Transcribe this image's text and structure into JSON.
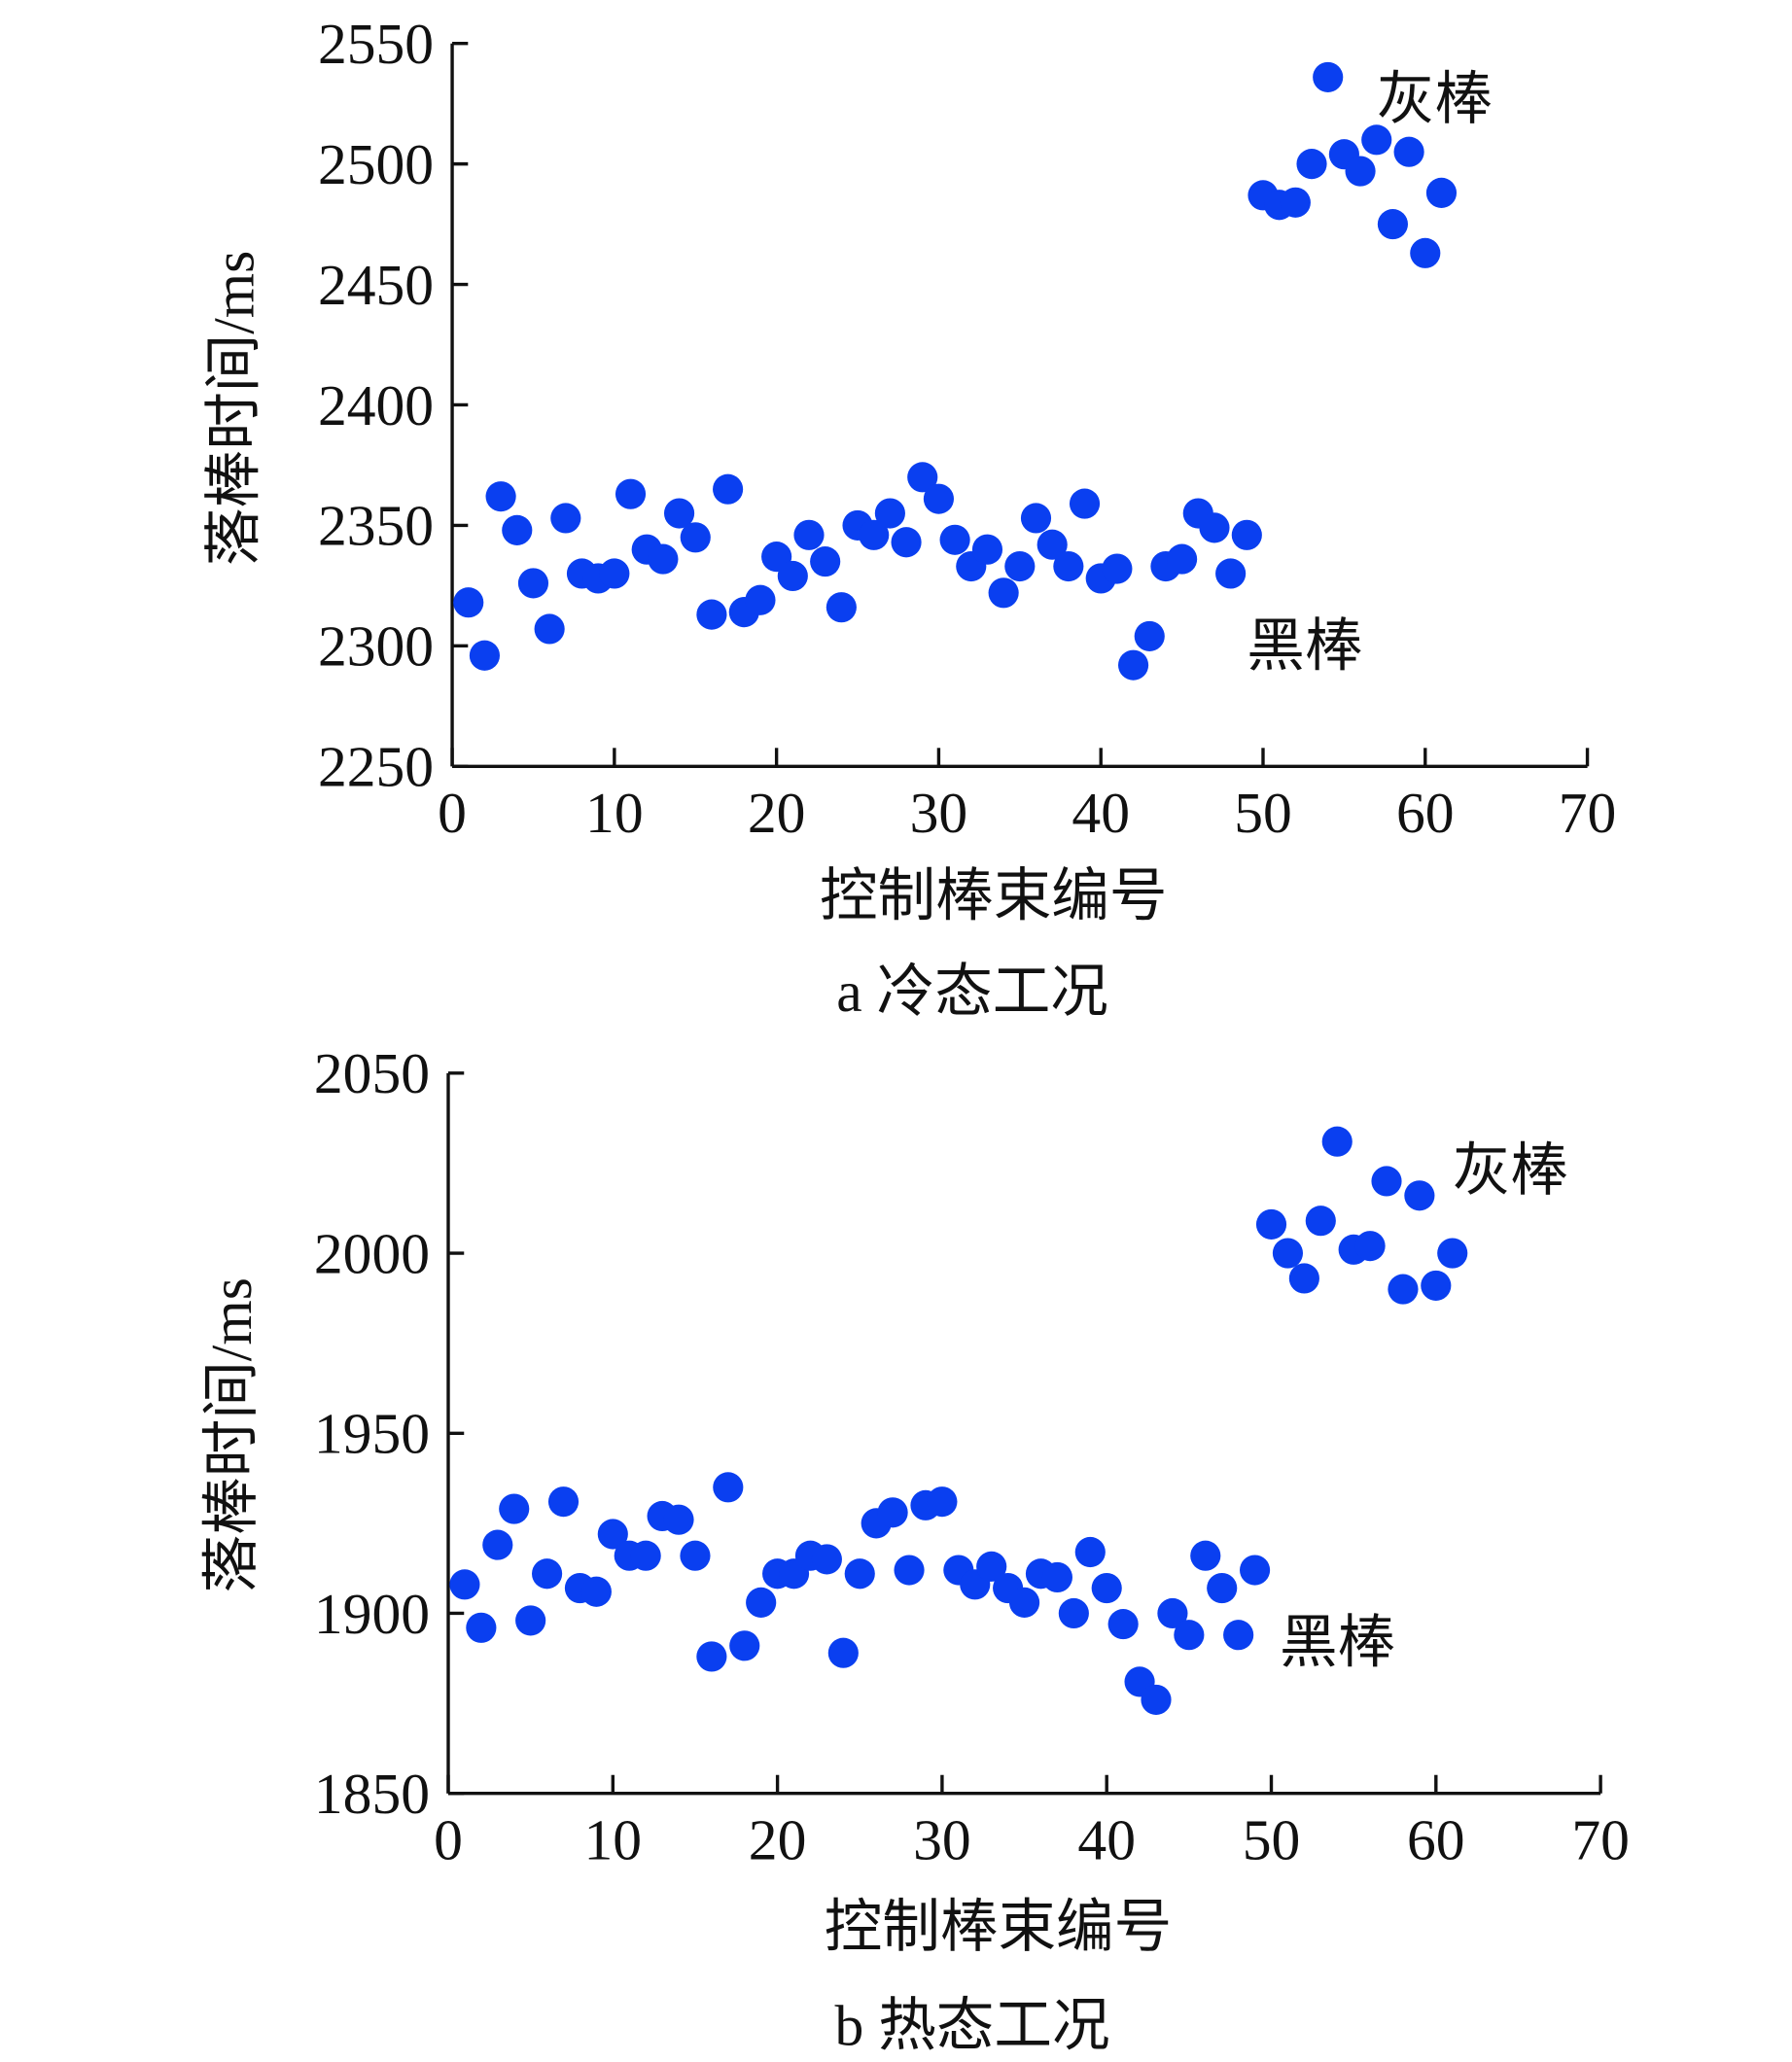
{
  "chart_data": [
    {
      "type": "scatter",
      "caption": "a  冷态工况",
      "xlabel": "控制棒束编号",
      "ylabel": "落棒时间/ms",
      "xlim": [
        0,
        70
      ],
      "ylim": [
        2250,
        2550
      ],
      "xticks": [
        "0",
        "10",
        "20",
        "30",
        "40",
        "50",
        "60",
        "70"
      ],
      "yticks": [
        "2250",
        "2300",
        "2350",
        "2400",
        "2450",
        "2500",
        "2550"
      ],
      "grid": false,
      "marker_color": "#0a3ff0",
      "annotations": [
        {
          "text": "灰棒",
          "x": 57,
          "y": 2527
        },
        {
          "text": "黑棒",
          "x": 49,
          "y": 2300
        }
      ],
      "x": [
        1,
        2,
        3,
        4,
        5,
        6,
        7,
        8,
        9,
        10,
        11,
        12,
        13,
        14,
        15,
        16,
        17,
        18,
        19,
        20,
        21,
        22,
        23,
        24,
        25,
        26,
        27,
        28,
        29,
        30,
        31,
        32,
        33,
        34,
        35,
        36,
        37,
        38,
        39,
        40,
        41,
        42,
        43,
        44,
        45,
        46,
        47,
        48,
        49,
        50,
        51,
        52,
        53,
        54,
        55,
        56,
        57,
        58,
        59,
        60,
        61
      ],
      "y": [
        2318,
        2296,
        2362,
        2348,
        2326,
        2307,
        2353,
        2330,
        2328,
        2330,
        2363,
        2340,
        2336,
        2355,
        2345,
        2313,
        2365,
        2314,
        2319,
        2337,
        2329,
        2346,
        2335,
        2316,
        2350,
        2346,
        2355,
        2343,
        2370,
        2361,
        2344,
        2333,
        2340,
        2322,
        2333,
        2353,
        2342,
        2333,
        2359,
        2328,
        2332,
        2292,
        2304,
        2333,
        2336,
        2355,
        2349,
        2330,
        2346,
        2487,
        2483,
        2484,
        2500,
        2536,
        2504,
        2497,
        2510,
        2475,
        2505,
        2463,
        2488
      ]
    },
    {
      "type": "scatter",
      "caption": "b  热态工况",
      "xlabel": "控制棒束编号",
      "ylabel": "落棒时间/ms",
      "xlim": [
        0,
        70
      ],
      "ylim": [
        1850,
        2050
      ],
      "xticks": [
        "0",
        "10",
        "20",
        "30",
        "40",
        "50",
        "60",
        "70"
      ],
      "yticks": [
        "1850",
        "1900",
        "1950",
        "2000",
        "2050"
      ],
      "grid": false,
      "marker_color": "#0a3ff0",
      "annotations": [
        {
          "text": "灰棒",
          "x": 61,
          "y": 2023
        },
        {
          "text": "黑棒",
          "x": 50.5,
          "y": 1892
        }
      ],
      "x": [
        1,
        2,
        3,
        4,
        5,
        6,
        7,
        8,
        9,
        10,
        11,
        12,
        13,
        14,
        15,
        16,
        17,
        18,
        19,
        20,
        21,
        22,
        23,
        24,
        25,
        26,
        27,
        28,
        29,
        30,
        31,
        32,
        33,
        34,
        35,
        36,
        37,
        38,
        39,
        40,
        41,
        42,
        43,
        44,
        45,
        46,
        47,
        48,
        49,
        50,
        51,
        52,
        53,
        54,
        55,
        56,
        57,
        58,
        59,
        60,
        61
      ],
      "y": [
        1908,
        1896,
        1919,
        1929,
        1898,
        1911,
        1931,
        1907,
        1906,
        1922,
        1916,
        1916,
        1927,
        1926,
        1916,
        1888,
        1935,
        1891,
        1903,
        1911,
        1911,
        1916,
        1915,
        1889,
        1911,
        1925,
        1928,
        1912,
        1930,
        1931,
        1912,
        1908,
        1913,
        1907,
        1903,
        1911,
        1910,
        1900,
        1917,
        1907,
        1897,
        1881,
        1876,
        1900,
        1894,
        1916,
        1907,
        1894,
        1912,
        2008,
        2000,
        1993,
        2009,
        2031,
        2001,
        2002,
        2020,
        1990,
        2016,
        1991,
        2000
      ]
    }
  ]
}
